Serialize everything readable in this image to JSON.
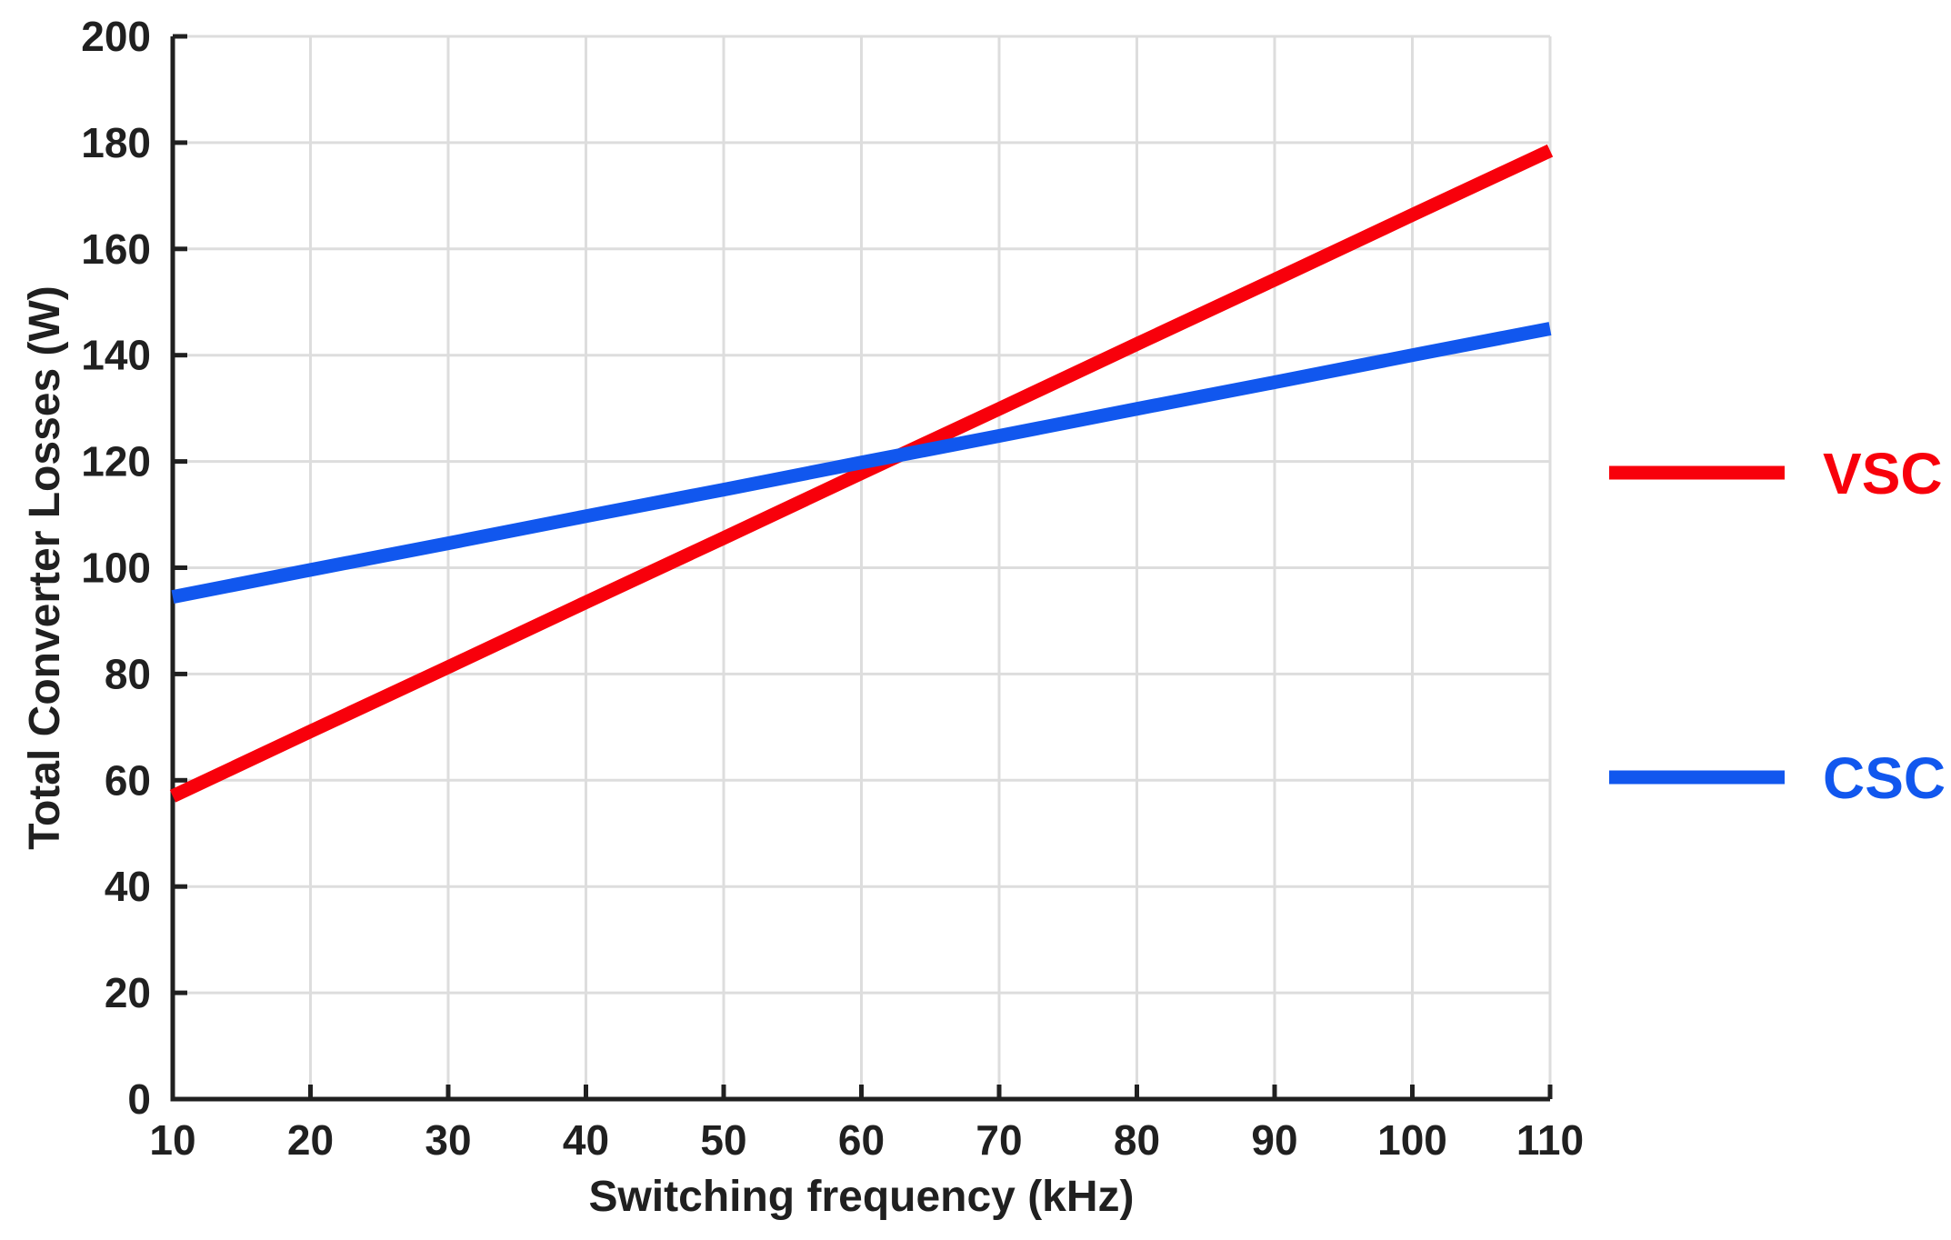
{
  "figure": {
    "background_color": "#FFFFFF",
    "axis_color": "#202020",
    "grid_color": "#DDDDDD",
    "tick_label_color": "#202020"
  },
  "chart_data": {
    "type": "line",
    "title": "",
    "xlabel": "Switching frequency (kHz)",
    "ylabel": "Total Converter Losses (W)",
    "xlim": [
      10,
      110
    ],
    "ylim": [
      0,
      200
    ],
    "xticks": [
      10,
      20,
      30,
      40,
      50,
      60,
      70,
      80,
      90,
      100,
      110
    ],
    "yticks": [
      0,
      20,
      40,
      60,
      80,
      100,
      120,
      140,
      160,
      180,
      200
    ],
    "grid": true,
    "legend_position": "right-outside",
    "x": [
      10,
      20,
      30,
      40,
      50,
      60,
      70,
      80,
      90,
      100,
      110
    ],
    "series": [
      {
        "name": "VSC",
        "color": "#F8000B",
        "values": [
          57.0,
          69.2,
          81.3,
          93.5,
          105.6,
          117.8,
          129.9,
          142.1,
          154.2,
          166.4,
          178.5
        ]
      },
      {
        "name": "CSC",
        "color": "#1157EE",
        "values": [
          94.5,
          99.6,
          104.6,
          109.7,
          114.7,
          119.8,
          124.8,
          129.9,
          134.9,
          140.0,
          145.0
        ]
      }
    ],
    "annotations": [],
    "crossover_point": {
      "x": 63,
      "y": 121.5
    }
  }
}
